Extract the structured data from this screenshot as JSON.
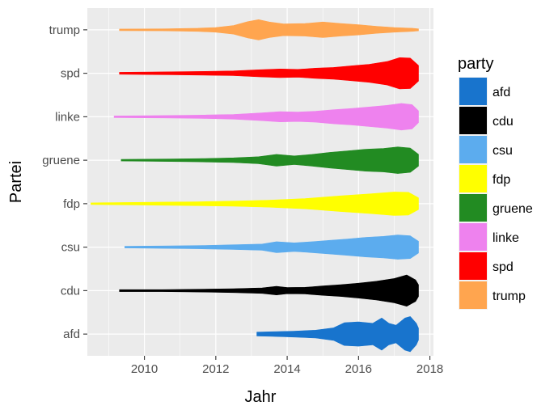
{
  "chart_data": {
    "type": "violin",
    "xlabel": "Jahr",
    "ylabel": "Partei",
    "xlim": [
      2008.4,
      2018.1
    ],
    "x_ticks": [
      "2010",
      "2012",
      "2014",
      "2016",
      "2018"
    ],
    "categories": [
      "afd",
      "cdu",
      "csu",
      "fdp",
      "gruene",
      "linke",
      "spd",
      "trump"
    ],
    "legend": {
      "title": "party",
      "placement": "right"
    },
    "grid": true,
    "series": [
      {
        "name": "afd",
        "color": "#1874CD",
        "density": [
          [
            2013.15,
            0.1
          ],
          [
            2013.6,
            0.12
          ],
          [
            2014.2,
            0.15
          ],
          [
            2014.8,
            0.2
          ],
          [
            2015.3,
            0.32
          ],
          [
            2015.6,
            0.58
          ],
          [
            2016.0,
            0.62
          ],
          [
            2016.4,
            0.55
          ],
          [
            2016.65,
            0.82
          ],
          [
            2016.85,
            0.55
          ],
          [
            2017.05,
            0.45
          ],
          [
            2017.3,
            0.82
          ],
          [
            2017.45,
            0.9
          ],
          [
            2017.62,
            0.55
          ],
          [
            2017.68,
            0.3
          ]
        ]
      },
      {
        "name": "cdu",
        "color": "#000000",
        "density": [
          [
            2009.3,
            0.05
          ],
          [
            2010.5,
            0.05
          ],
          [
            2011.5,
            0.07
          ],
          [
            2012.5,
            0.1
          ],
          [
            2013.3,
            0.14
          ],
          [
            2013.7,
            0.22
          ],
          [
            2014.0,
            0.16
          ],
          [
            2014.5,
            0.17
          ],
          [
            2015.0,
            0.24
          ],
          [
            2015.5,
            0.3
          ],
          [
            2016.0,
            0.38
          ],
          [
            2016.5,
            0.48
          ],
          [
            2017.0,
            0.62
          ],
          [
            2017.35,
            0.8
          ],
          [
            2017.6,
            0.55
          ],
          [
            2017.68,
            0.3
          ]
        ]
      },
      {
        "name": "csu",
        "color": "#5CACEE",
        "density": [
          [
            2009.45,
            0.04
          ],
          [
            2010.5,
            0.06
          ],
          [
            2011.5,
            0.08
          ],
          [
            2012.5,
            0.12
          ],
          [
            2013.3,
            0.16
          ],
          [
            2013.7,
            0.28
          ],
          [
            2014.2,
            0.22
          ],
          [
            2014.7,
            0.28
          ],
          [
            2015.2,
            0.35
          ],
          [
            2015.7,
            0.42
          ],
          [
            2016.2,
            0.5
          ],
          [
            2016.7,
            0.55
          ],
          [
            2017.1,
            0.62
          ],
          [
            2017.45,
            0.58
          ],
          [
            2017.68,
            0.3
          ]
        ]
      },
      {
        "name": "fdp",
        "color": "#FFFF00",
        "density": [
          [
            2008.5,
            0.04
          ],
          [
            2009.5,
            0.06
          ],
          [
            2010.5,
            0.08
          ],
          [
            2011.5,
            0.1
          ],
          [
            2012.5,
            0.13
          ],
          [
            2013.5,
            0.18
          ],
          [
            2014.5,
            0.26
          ],
          [
            2015.5,
            0.4
          ],
          [
            2016.3,
            0.5
          ],
          [
            2017.0,
            0.6
          ],
          [
            2017.4,
            0.58
          ],
          [
            2017.68,
            0.3
          ]
        ]
      },
      {
        "name": "gruene",
        "color": "#228B22",
        "density": [
          [
            2009.35,
            0.04
          ],
          [
            2010.5,
            0.06
          ],
          [
            2011.5,
            0.08
          ],
          [
            2012.5,
            0.12
          ],
          [
            2013.2,
            0.18
          ],
          [
            2013.7,
            0.3
          ],
          [
            2014.2,
            0.22
          ],
          [
            2014.7,
            0.3
          ],
          [
            2015.2,
            0.4
          ],
          [
            2015.7,
            0.48
          ],
          [
            2016.2,
            0.56
          ],
          [
            2016.7,
            0.6
          ],
          [
            2017.1,
            0.68
          ],
          [
            2017.45,
            0.62
          ],
          [
            2017.68,
            0.3
          ]
        ]
      },
      {
        "name": "linke",
        "color": "#EE82EE",
        "density": [
          [
            2009.15,
            0.04
          ],
          [
            2010.5,
            0.06
          ],
          [
            2011.5,
            0.08
          ],
          [
            2012.5,
            0.12
          ],
          [
            2013.3,
            0.2
          ],
          [
            2013.8,
            0.26
          ],
          [
            2014.3,
            0.24
          ],
          [
            2014.8,
            0.28
          ],
          [
            2015.3,
            0.36
          ],
          [
            2015.8,
            0.42
          ],
          [
            2016.3,
            0.5
          ],
          [
            2016.8,
            0.58
          ],
          [
            2017.2,
            0.68
          ],
          [
            2017.5,
            0.62
          ],
          [
            2017.68,
            0.3
          ]
        ]
      },
      {
        "name": "spd",
        "color": "#FF0000",
        "density": [
          [
            2009.3,
            0.05
          ],
          [
            2010.5,
            0.07
          ],
          [
            2011.5,
            0.09
          ],
          [
            2012.5,
            0.12
          ],
          [
            2013.2,
            0.18
          ],
          [
            2013.8,
            0.22
          ],
          [
            2014.3,
            0.2
          ],
          [
            2014.8,
            0.26
          ],
          [
            2015.3,
            0.3
          ],
          [
            2015.8,
            0.38
          ],
          [
            2016.3,
            0.46
          ],
          [
            2016.8,
            0.6
          ],
          [
            2017.15,
            0.8
          ],
          [
            2017.45,
            0.78
          ],
          [
            2017.68,
            0.4
          ]
        ]
      },
      {
        "name": "trump",
        "color": "#FFA54F",
        "density": [
          [
            2009.3,
            0.04
          ],
          [
            2010.5,
            0.05
          ],
          [
            2011.5,
            0.08
          ],
          [
            2012.0,
            0.12
          ],
          [
            2012.5,
            0.22
          ],
          [
            2012.9,
            0.42
          ],
          [
            2013.2,
            0.52
          ],
          [
            2013.5,
            0.4
          ],
          [
            2013.9,
            0.3
          ],
          [
            2014.5,
            0.32
          ],
          [
            2015.0,
            0.4
          ],
          [
            2015.5,
            0.32
          ],
          [
            2016.0,
            0.26
          ],
          [
            2016.5,
            0.18
          ],
          [
            2017.0,
            0.12
          ],
          [
            2017.5,
            0.08
          ],
          [
            2017.68,
            0.05
          ]
        ]
      }
    ]
  }
}
